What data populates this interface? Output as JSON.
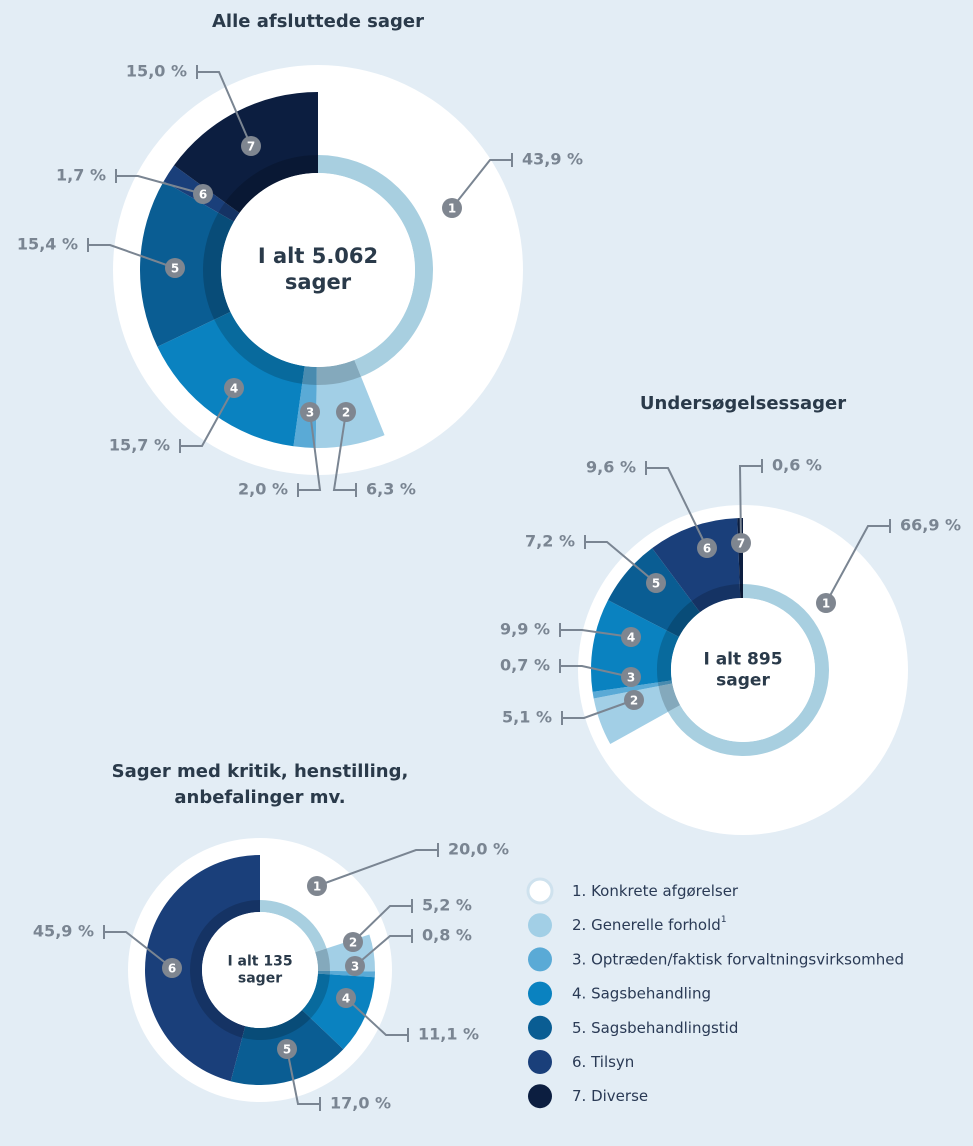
{
  "chart_data": [
    {
      "type": "pie",
      "title": [
        "Alle afsluttede sager"
      ],
      "center_label": [
        "I alt 5.062",
        "sager"
      ],
      "categories": [
        "1",
        "2",
        "3",
        "4",
        "5",
        "6",
        "7"
      ],
      "values": [
        43.9,
        6.3,
        2.0,
        15.7,
        15.4,
        1.7,
        15.0
      ],
      "value_labels": [
        "43,9 %",
        "6,3 %",
        "2,0 %",
        "15,7 %",
        "15,4 %",
        "1,7 %",
        "15,0 %"
      ],
      "colors": [
        "#ffffff",
        "#a2cfe6",
        "#5aaad6",
        "#0a82c0",
        "#0a5d93",
        "#1a3f7a",
        "#0c1e40"
      ]
    },
    {
      "type": "pie",
      "title": [
        "Undersøgelsessager"
      ],
      "center_label": [
        "I alt 895",
        "sager"
      ],
      "categories": [
        "1",
        "2",
        "3",
        "4",
        "5",
        "6",
        "7"
      ],
      "values": [
        66.9,
        5.1,
        0.7,
        9.9,
        7.2,
        9.6,
        0.6
      ],
      "value_labels": [
        "66,9 %",
        "5,1 %",
        "0,7 %",
        "9,9 %",
        "7,2 %",
        "9,6 %",
        "0,6 %"
      ],
      "colors": [
        "#ffffff",
        "#a2cfe6",
        "#5aaad6",
        "#0a82c0",
        "#0a5d93",
        "#1a3f7a",
        "#0c1e40"
      ]
    },
    {
      "type": "pie",
      "title": [
        "Sager med kritik, henstilling,",
        "anbefalinger mv."
      ],
      "center_label": [
        "I alt 135",
        "sager"
      ],
      "categories": [
        "1",
        "2",
        "3",
        "4",
        "5",
        "6"
      ],
      "values": [
        20.0,
        5.2,
        0.8,
        11.1,
        17.0,
        45.9
      ],
      "value_labels": [
        "20,0 %",
        "5,2 %",
        "0,8 %",
        "11,1 %",
        "17,0 %",
        "45,9 %"
      ],
      "colors": [
        "#ffffff",
        "#a2cfe6",
        "#5aaad6",
        "#0a82c0",
        "#0a5d93",
        "#1a3f7a"
      ]
    }
  ],
  "legend": [
    {
      "label": "1. Konkrete afgørelser",
      "color": "#ffffff"
    },
    {
      "label": "2. Generelle forhold",
      "note": "1",
      "color": "#a2cfe6"
    },
    {
      "label": "3. Optræden/faktisk forvaltningsvirksomhed",
      "color": "#5aaad6"
    },
    {
      "label": "4. Sagsbehandling",
      "color": "#0a82c0"
    },
    {
      "label": "5. Sagsbehandlingstid",
      "color": "#0a5d93"
    },
    {
      "label": "6. Tilsyn",
      "color": "#1a3f7a"
    },
    {
      "label": "7. Diverse",
      "color": "#0c1e40"
    }
  ]
}
